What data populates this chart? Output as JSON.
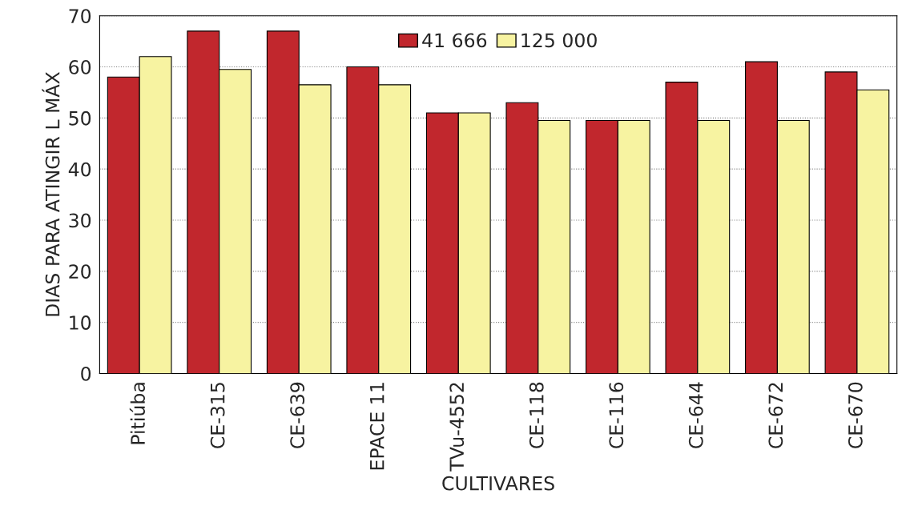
{
  "chart_data": {
    "type": "bar",
    "xlabel": "CULTIVARES",
    "ylabel": "DIAS PARA ATINGIR L MÁX",
    "categories": [
      "Pitiúba",
      "CE-315",
      "CE-639",
      "EPACE 11",
      "TVu-4552",
      "CE-118",
      "CE-116",
      "CE-644",
      "CE-672",
      "CE-670"
    ],
    "series": [
      {
        "name": "41 666",
        "color": "#c1272d",
        "values": [
          58,
          67,
          67,
          60,
          51,
          53,
          49.5,
          57,
          61,
          59
        ]
      },
      {
        "name": "125 000",
        "color": "#f7f3a1",
        "values": [
          62,
          59.5,
          56.5,
          56.5,
          51,
          49.5,
          49.5,
          49.5,
          49.5,
          55.5
        ]
      }
    ],
    "ylim": [
      0,
      70
    ],
    "yticks": [
      0,
      10,
      20,
      30,
      40,
      50,
      60,
      70
    ],
    "grid": "y",
    "legend": "top"
  }
}
